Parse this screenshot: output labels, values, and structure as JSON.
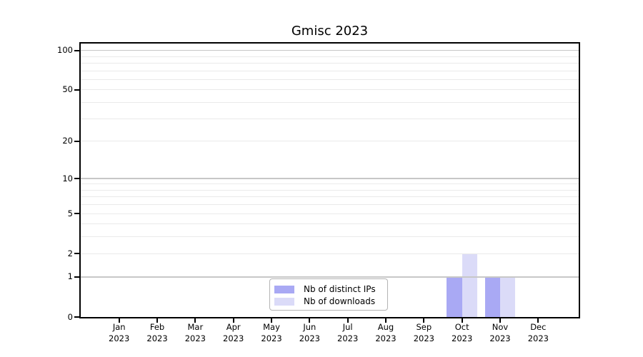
{
  "chart_data": {
    "type": "bar",
    "title": "Gmisc 2023",
    "categories": [
      "Jan 2023",
      "Feb 2023",
      "Mar 2023",
      "Apr 2023",
      "May 2023",
      "Jun 2023",
      "Jul 2023",
      "Aug 2023",
      "Sep 2023",
      "Oct 2023",
      "Nov 2023",
      "Dec 2023"
    ],
    "series": [
      {
        "name": "Nb of distinct IPs",
        "color": "#a9a9f4",
        "values": [
          0,
          0,
          0,
          0,
          0,
          0,
          0,
          0,
          0,
          1,
          1,
          0
        ]
      },
      {
        "name": "Nb of downloads",
        "color": "#dbdbf8",
        "values": [
          0,
          0,
          0,
          0,
          0,
          0,
          0,
          0,
          0,
          2,
          1,
          0
        ]
      }
    ],
    "xlabel": "",
    "ylabel": "",
    "y_scale": "log1p",
    "ylim": [
      0,
      114
    ],
    "y_tick_values": [
      0,
      1,
      2,
      5,
      10,
      20,
      50,
      100
    ],
    "y_tick_labels": [
      "0",
      "1",
      "2",
      "5",
      "10",
      "20",
      "50",
      "100"
    ],
    "gridlines_major": [
      1,
      10,
      100
    ],
    "gridlines_minor": [
      2,
      3,
      4,
      5,
      6,
      7,
      8,
      9,
      20,
      30,
      40,
      50,
      60,
      70,
      80,
      90
    ],
    "grid": true,
    "legend_position": "inside-bottom-center",
    "colors": {
      "grid_major": "#c7c7c7",
      "grid_minor": "#eaeaea",
      "axis": "#000000",
      "legend_border": "#b3b3b3",
      "background": "#ffffff"
    }
  }
}
